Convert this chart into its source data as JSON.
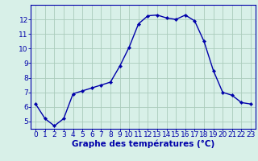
{
  "x": [
    0,
    1,
    2,
    3,
    4,
    5,
    6,
    7,
    8,
    9,
    10,
    11,
    12,
    13,
    14,
    15,
    16,
    17,
    18,
    19,
    20,
    21,
    22,
    23
  ],
  "y": [
    6.2,
    5.2,
    4.7,
    5.2,
    6.9,
    7.1,
    7.3,
    7.5,
    7.7,
    8.8,
    10.1,
    11.7,
    12.25,
    12.3,
    12.1,
    12.0,
    12.3,
    11.9,
    10.5,
    8.5,
    7.0,
    6.8,
    6.3,
    6.2
  ],
  "line_color": "#0000aa",
  "marker": "D",
  "marker_size": 2.2,
  "bg_color": "#d8f0e8",
  "grid_color": "#aaccbb",
  "xlabel": "Graphe des températures (°C)",
  "xlabel_color": "#0000aa",
  "tick_color": "#0000aa",
  "ylim": [
    4.5,
    13.0
  ],
  "xlim": [
    -0.5,
    23.5
  ],
  "yticks": [
    5,
    6,
    7,
    8,
    9,
    10,
    11,
    12
  ],
  "xticks": [
    0,
    1,
    2,
    3,
    4,
    5,
    6,
    7,
    8,
    9,
    10,
    11,
    12,
    13,
    14,
    15,
    16,
    17,
    18,
    19,
    20,
    21,
    22,
    23
  ],
  "spine_color": "#0000aa",
  "label_fontsize": 7.5,
  "tick_fontsize": 6.5,
  "linewidth": 1.0
}
